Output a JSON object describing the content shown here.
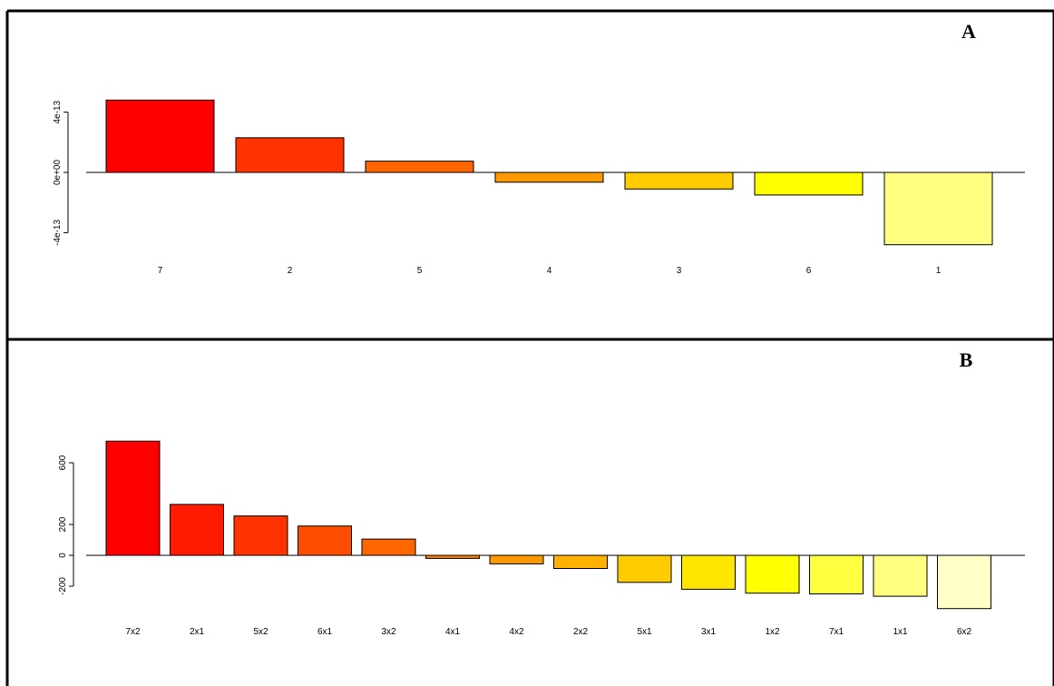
{
  "panels": [
    {
      "letter": "A",
      "chart_data": {
        "type": "bar",
        "categories": [
          "7",
          "2",
          "5",
          "4",
          "3",
          "6",
          "1"
        ],
        "values": [
          4.8e-13,
          2.3e-13,
          7.5e-14,
          -6.5e-14,
          -1.1e-13,
          -1.5e-13,
          -4.8e-13
        ],
        "colors": [
          "#ff0000",
          "#ff3300",
          "#ff6600",
          "#ff9900",
          "#ffcc00",
          "#ffff00",
          "#ffff80"
        ],
        "yticks": [
          -4e-13,
          0,
          4e-13
        ],
        "ytick_labels": [
          "-4e-13",
          "0e+00",
          "4e-13"
        ],
        "ylim": [
          -5.5e-13,
          5.5e-13
        ],
        "title": "",
        "xlabel": "",
        "ylabel": ""
      }
    },
    {
      "letter": "B",
      "chart_data": {
        "type": "bar",
        "categories": [
          "7x2",
          "2x1",
          "5x2",
          "6x1",
          "3x2",
          "4x1",
          "4x2",
          "2x2",
          "5x1",
          "3x1",
          "1x2",
          "7x1",
          "1x1",
          "6x2"
        ],
        "values": [
          740,
          330,
          255,
          190,
          105,
          -20,
          -55,
          -85,
          -175,
          -220,
          -245,
          -250,
          -265,
          -345
        ],
        "colors": [
          "#ff0000",
          "#ff1a00",
          "#ff3300",
          "#ff4d00",
          "#ff6600",
          "#ff8000",
          "#ff9900",
          "#ffb300",
          "#ffcc00",
          "#ffe600",
          "#ffff00",
          "#ffff40",
          "#ffff80",
          "#ffffc8"
        ],
        "yticks": [
          -200,
          0,
          200,
          600
        ],
        "ytick_labels": [
          "-200",
          "0",
          "200",
          "600"
        ],
        "ylim": [
          -400,
          800
        ],
        "title": "",
        "xlabel": "",
        "ylabel": ""
      }
    }
  ]
}
